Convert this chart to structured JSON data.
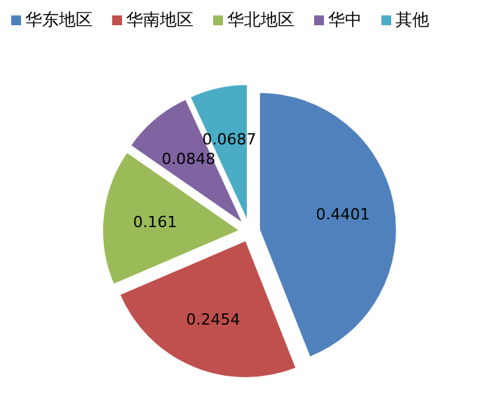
{
  "chart_data": {
    "type": "pie",
    "categories": [
      "华东地区",
      "华南地区",
      "华北地区",
      "华中",
      "其他"
    ],
    "values": [
      0.4401,
      0.2454,
      0.161,
      0.0848,
      0.0687
    ],
    "colors": [
      "#4f81bd",
      "#c0504d",
      "#9bbb59",
      "#8064a2",
      "#4bacc6"
    ],
    "data_labels": true,
    "legend": "top"
  }
}
